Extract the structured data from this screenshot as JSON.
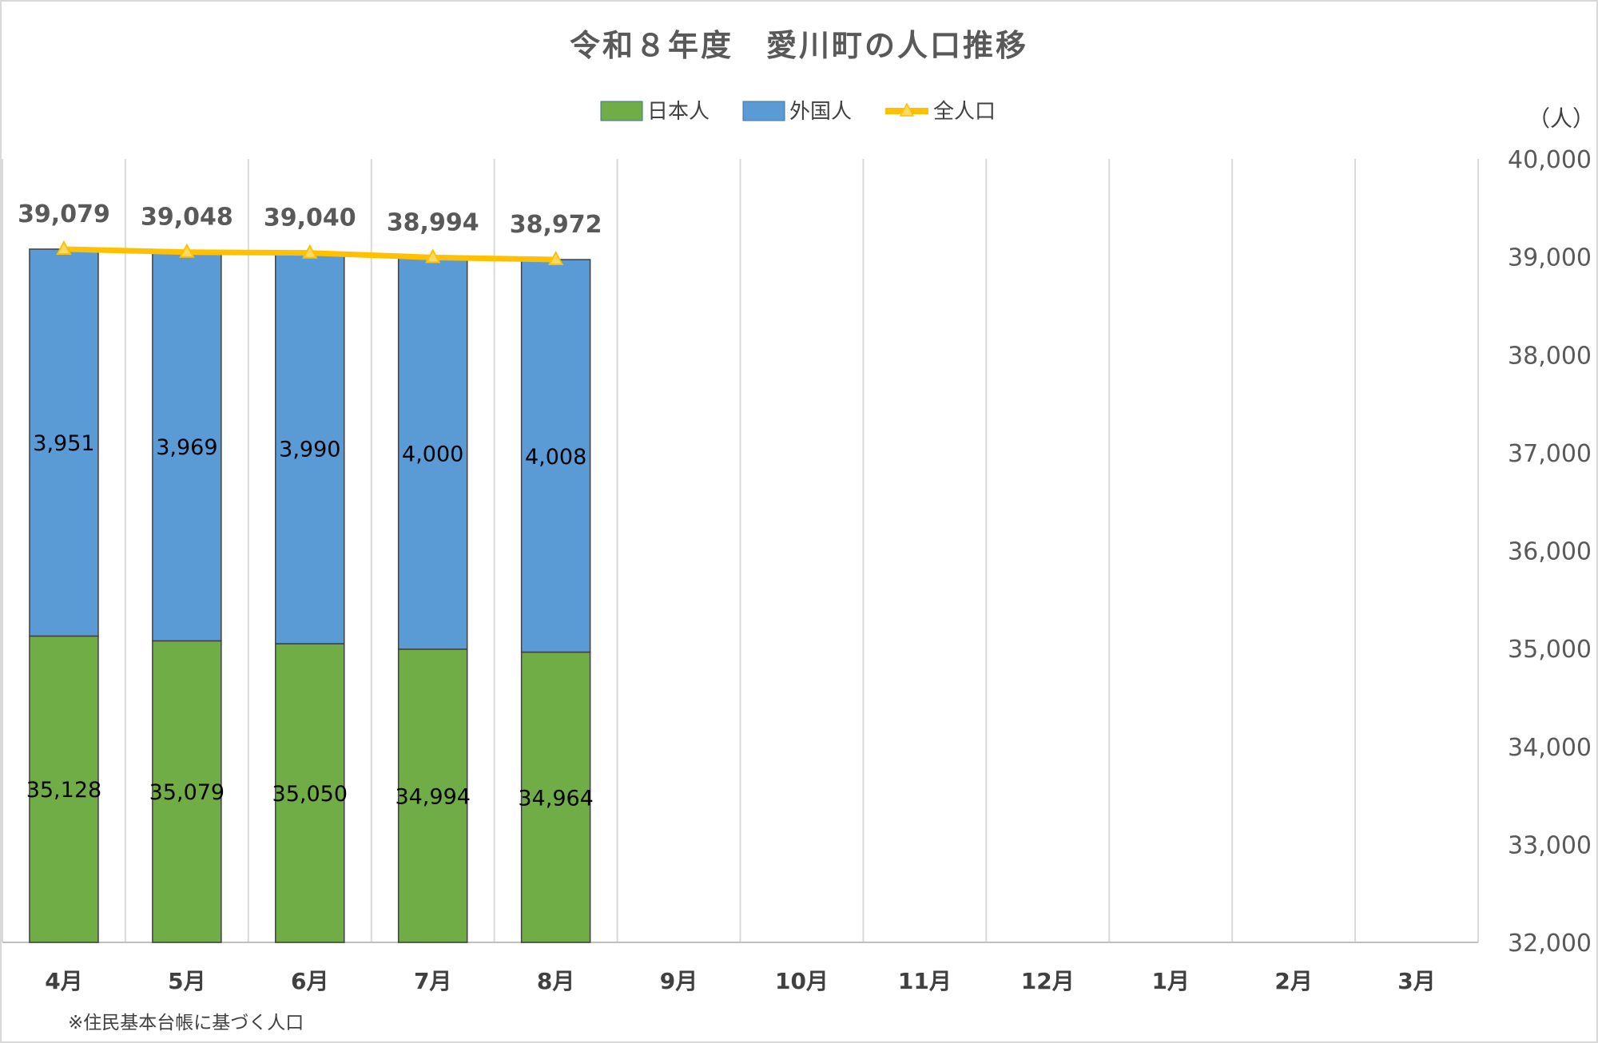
{
  "colors": {
    "japanese": "#70ad47",
    "foreign": "#5b9bd5",
    "total": "#ffc000",
    "total_marker_fill": "#ffd966"
  },
  "chart_data": {
    "type": "bar",
    "title": "令和８年度　愛川町の人口推移",
    "unit": "（人）",
    "note": "※住民基本台帳に基づく人口",
    "categories": [
      "4月",
      "5月",
      "6月",
      "7月",
      "8月",
      "9月",
      "10月",
      "11月",
      "12月",
      "1月",
      "2月",
      "3月"
    ],
    "series": [
      {
        "name": "日本人",
        "type": "bar",
        "stacked": true,
        "values": [
          35128,
          35079,
          35050,
          34994,
          34964,
          null,
          null,
          null,
          null,
          null,
          null,
          null
        ],
        "labels": [
          "35,128",
          "35,079",
          "35,050",
          "34,994",
          "34,964"
        ]
      },
      {
        "name": "外国人",
        "type": "bar",
        "stacked": true,
        "values": [
          3951,
          3969,
          3990,
          4000,
          4008,
          null,
          null,
          null,
          null,
          null,
          null,
          null
        ],
        "labels": [
          "3,951",
          "3,969",
          "3,990",
          "4,000",
          "4,008"
        ]
      },
      {
        "name": "全人口",
        "type": "line",
        "marker": "triangle",
        "values": [
          39079,
          39048,
          39040,
          38994,
          38972,
          null,
          null,
          null,
          null,
          null,
          null,
          null
        ],
        "labels": [
          "39,079",
          "39,048",
          "39,040",
          "38,994",
          "38,972"
        ]
      }
    ],
    "y_axis": {
      "position": "right",
      "ylim": [
        32000,
        40000
      ],
      "ticks": [
        32000,
        33000,
        34000,
        35000,
        36000,
        37000,
        38000,
        39000,
        40000
      ],
      "tick_labels": [
        "32,000",
        "33,000",
        "34,000",
        "35,000",
        "36,000",
        "37,000",
        "38,000",
        "39,000",
        "40,000"
      ]
    },
    "grid": "vertical",
    "legend_position": "top"
  }
}
